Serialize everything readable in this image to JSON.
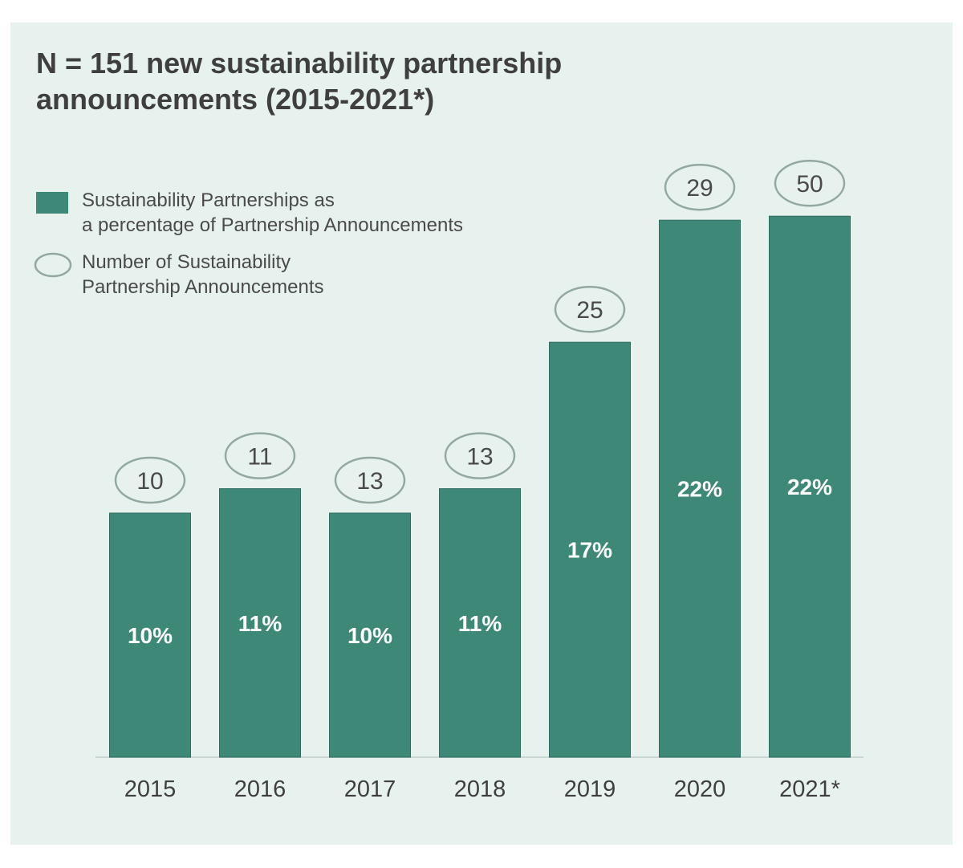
{
  "title": "N = 151 new sustainability partnership announcements (2015-2021*)",
  "legend": {
    "bar_label_line1": "Sustainability Partnerships as",
    "bar_label_line2": "a percentage of Partnership Announcements",
    "ellipse_label_line1": "Number of Sustainability",
    "ellipse_label_line2": "Partnership Announcements"
  },
  "colors": {
    "background": "#e7f2ef",
    "bar": "#3e8878",
    "ellipse_stroke": "#93a8a3",
    "axis": "#c9d6d3"
  },
  "chart_data": {
    "type": "bar",
    "title": "N = 151 new sustainability partnership announcements (2015-2021*)",
    "categories": [
      "2015",
      "2016",
      "2017",
      "2018",
      "2019",
      "2020",
      "2021*"
    ],
    "series": [
      {
        "name": "Sustainability Partnerships as a percentage of Partnership Announcements",
        "values": [
          10,
          11,
          10,
          11,
          17,
          22,
          22
        ],
        "labels": [
          "10%",
          "11%",
          "10%",
          "11%",
          "17%",
          "22%",
          "22%"
        ]
      },
      {
        "name": "Number of Sustainability Partnership Announcements",
        "values": [
          10,
          11,
          13,
          13,
          25,
          29,
          50
        ],
        "labels": [
          "10",
          "11",
          "13",
          "13",
          "25",
          "29",
          "50"
        ]
      }
    ],
    "xlabel": "",
    "ylabel": "",
    "grid": false,
    "legend_position": "top-left"
  }
}
